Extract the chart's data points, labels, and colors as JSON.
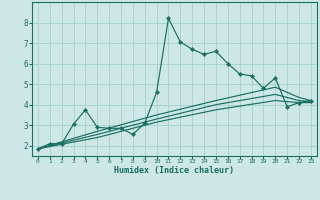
{
  "xlabel": "Humidex (Indice chaleur)",
  "bg_color": "#cde8e4",
  "grid_color": "#a8d4cf",
  "line_color": "#1a6e64",
  "xlim": [
    -0.5,
    23.5
  ],
  "ylim": [
    1.5,
    9.0
  ],
  "yticks": [
    2,
    3,
    4,
    5,
    6,
    7,
    8
  ],
  "xticks": [
    0,
    1,
    2,
    3,
    4,
    5,
    6,
    7,
    8,
    9,
    10,
    11,
    12,
    13,
    14,
    15,
    16,
    17,
    18,
    19,
    20,
    21,
    22,
    23
  ],
  "series_main": {
    "x": [
      0,
      1,
      2,
      3,
      4,
      5,
      6,
      7,
      8,
      9,
      10,
      11,
      12,
      13,
      14,
      15,
      16,
      17,
      18,
      19,
      20,
      21,
      22,
      23
    ],
    "y": [
      1.85,
      2.1,
      2.1,
      3.05,
      3.75,
      2.9,
      2.85,
      2.85,
      2.55,
      3.1,
      4.6,
      8.2,
      7.05,
      6.7,
      6.45,
      6.6,
      6.0,
      5.5,
      5.4,
      4.8,
      5.3,
      3.9,
      4.1,
      4.2
    ]
  },
  "series_smooth": [
    {
      "x": [
        0,
        5,
        10,
        15,
        20,
        22,
        23
      ],
      "y": [
        1.85,
        2.7,
        3.5,
        4.2,
        4.85,
        4.35,
        4.2
      ]
    },
    {
      "x": [
        0,
        5,
        10,
        15,
        20,
        22,
        23
      ],
      "y": [
        1.85,
        2.55,
        3.3,
        4.0,
        4.5,
        4.2,
        4.15
      ]
    },
    {
      "x": [
        0,
        5,
        10,
        15,
        20,
        22,
        23
      ],
      "y": [
        1.85,
        2.4,
        3.15,
        3.75,
        4.2,
        4.1,
        4.1
      ]
    }
  ]
}
